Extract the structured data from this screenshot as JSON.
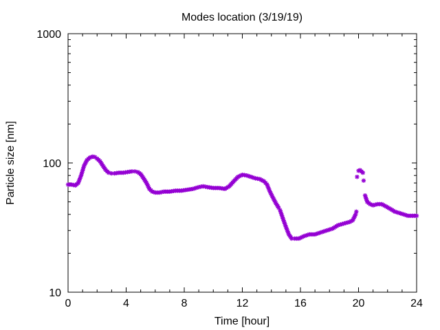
{
  "chart_data": {
    "type": "scatter",
    "title": "Modes location (3/19/19)",
    "xlabel": "Time [hour]",
    "ylabel": "Particle size [nm]",
    "xlim": [
      0,
      24
    ],
    "ylim": [
      10,
      1000
    ],
    "yscale": "log",
    "xticks": [
      "0",
      "4",
      "8",
      "12",
      "16",
      "20",
      "24"
    ],
    "yticks": [
      "10",
      "100",
      "1000"
    ],
    "grid": false,
    "marker": "asterisk",
    "color": "#9400d3",
    "series": [
      {
        "x": [
          0.0,
          0.25,
          0.5,
          0.7,
          0.9,
          1.1,
          1.3,
          1.5,
          1.7,
          1.85,
          2.0,
          2.2,
          2.4,
          2.6,
          2.8,
          3.0,
          3.2,
          3.5,
          3.8,
          4.1,
          4.4,
          4.6,
          4.8,
          5.0,
          5.2,
          5.4,
          5.6,
          5.8,
          6.0,
          6.3,
          6.6,
          7.0,
          7.4,
          7.8,
          8.2,
          8.6,
          9.0,
          9.3,
          9.6,
          10.0,
          10.4,
          10.8,
          11.1,
          11.4,
          11.7,
          12.0,
          12.3,
          12.6,
          12.9,
          13.2,
          13.5,
          13.7,
          13.9,
          14.1,
          14.3,
          14.5,
          14.6,
          14.8,
          15.0,
          15.2,
          15.4,
          15.6,
          15.9,
          16.2,
          16.6,
          17.0,
          17.4,
          17.8,
          18.2,
          18.6,
          19.0,
          19.4,
          19.6,
          19.8,
          19.85,
          19.9,
          20.0,
          20.1,
          20.2,
          20.3,
          20.35,
          20.45,
          20.6,
          20.8,
          21.0,
          21.3,
          21.6,
          21.9,
          22.2,
          22.5,
          22.8,
          23.1,
          23.4,
          23.7,
          24.0
        ],
        "y": [
          68,
          68,
          67,
          70,
          80,
          95,
          105,
          110,
          112,
          111,
          108,
          103,
          95,
          88,
          84,
          83,
          83,
          84,
          84,
          85,
          86,
          86,
          85,
          82,
          76,
          70,
          63,
          60,
          59,
          59,
          60,
          60,
          61,
          61,
          62,
          63,
          65,
          66,
          65,
          64,
          64,
          63,
          66,
          72,
          78,
          81,
          80,
          78,
          76,
          75,
          72,
          68,
          60,
          54,
          49,
          45,
          43,
          37,
          32,
          28,
          26,
          26,
          26,
          27,
          28,
          28,
          29,
          30,
          31,
          33,
          34,
          35,
          36,
          40,
          42,
          78,
          87,
          88,
          86,
          84,
          73,
          56,
          50,
          48,
          47,
          48,
          48,
          46,
          44,
          42,
          41,
          40,
          39,
          39,
          39
        ]
      }
    ]
  }
}
